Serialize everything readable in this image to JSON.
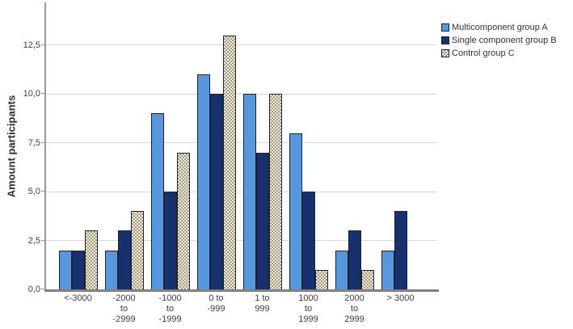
{
  "figure": {
    "background": "#ffffff"
  },
  "colors": {
    "y_axis_line": "#9a9a9a",
    "x_axis_line": "#808080",
    "gridline": "#d9d9d9",
    "text": "#3d3d3d",
    "bar_border": "#1c2134"
  },
  "chart_data": {
    "type": "bar",
    "title": "",
    "xlabel": "",
    "ylabel": "Amount participants",
    "grid": true,
    "legend_position": "top-right",
    "ylim": [
      0,
      14.6
    ],
    "yticks": [
      {
        "value": 0,
        "label": "0,0"
      },
      {
        "value": 2.5,
        "label": "2,5"
      },
      {
        "value": 5,
        "label": "5,0"
      },
      {
        "value": 7.5,
        "label": "7,5"
      },
      {
        "value": 10,
        "label": "10,0"
      },
      {
        "value": 12.5,
        "label": "12,5"
      }
    ],
    "categories": [
      "<-3000",
      "-2000\nto\n-2999",
      "-1000\nto\n-1999",
      "0 to\n-999",
      "1 to\n999",
      "1000\nto\n1999",
      "2000\nto\n2999",
      "> 3000"
    ],
    "series": [
      {
        "name": "Multicomponent group A",
        "fill": "#5697dd",
        "pattern": "solid",
        "values": [
          2,
          2,
          9,
          11,
          10,
          8,
          2,
          2
        ]
      },
      {
        "name": "Single component group B",
        "fill": "#16316e",
        "pattern": "solid",
        "values": [
          2,
          3,
          5,
          10,
          7,
          5,
          3,
          4
        ]
      },
      {
        "name": "Control group C",
        "fill": "#f1ebd9",
        "pattern": "checker",
        "pattern_color": "#a49c85",
        "values": [
          3,
          4,
          7,
          13,
          10,
          1,
          1,
          0
        ]
      }
    ]
  }
}
